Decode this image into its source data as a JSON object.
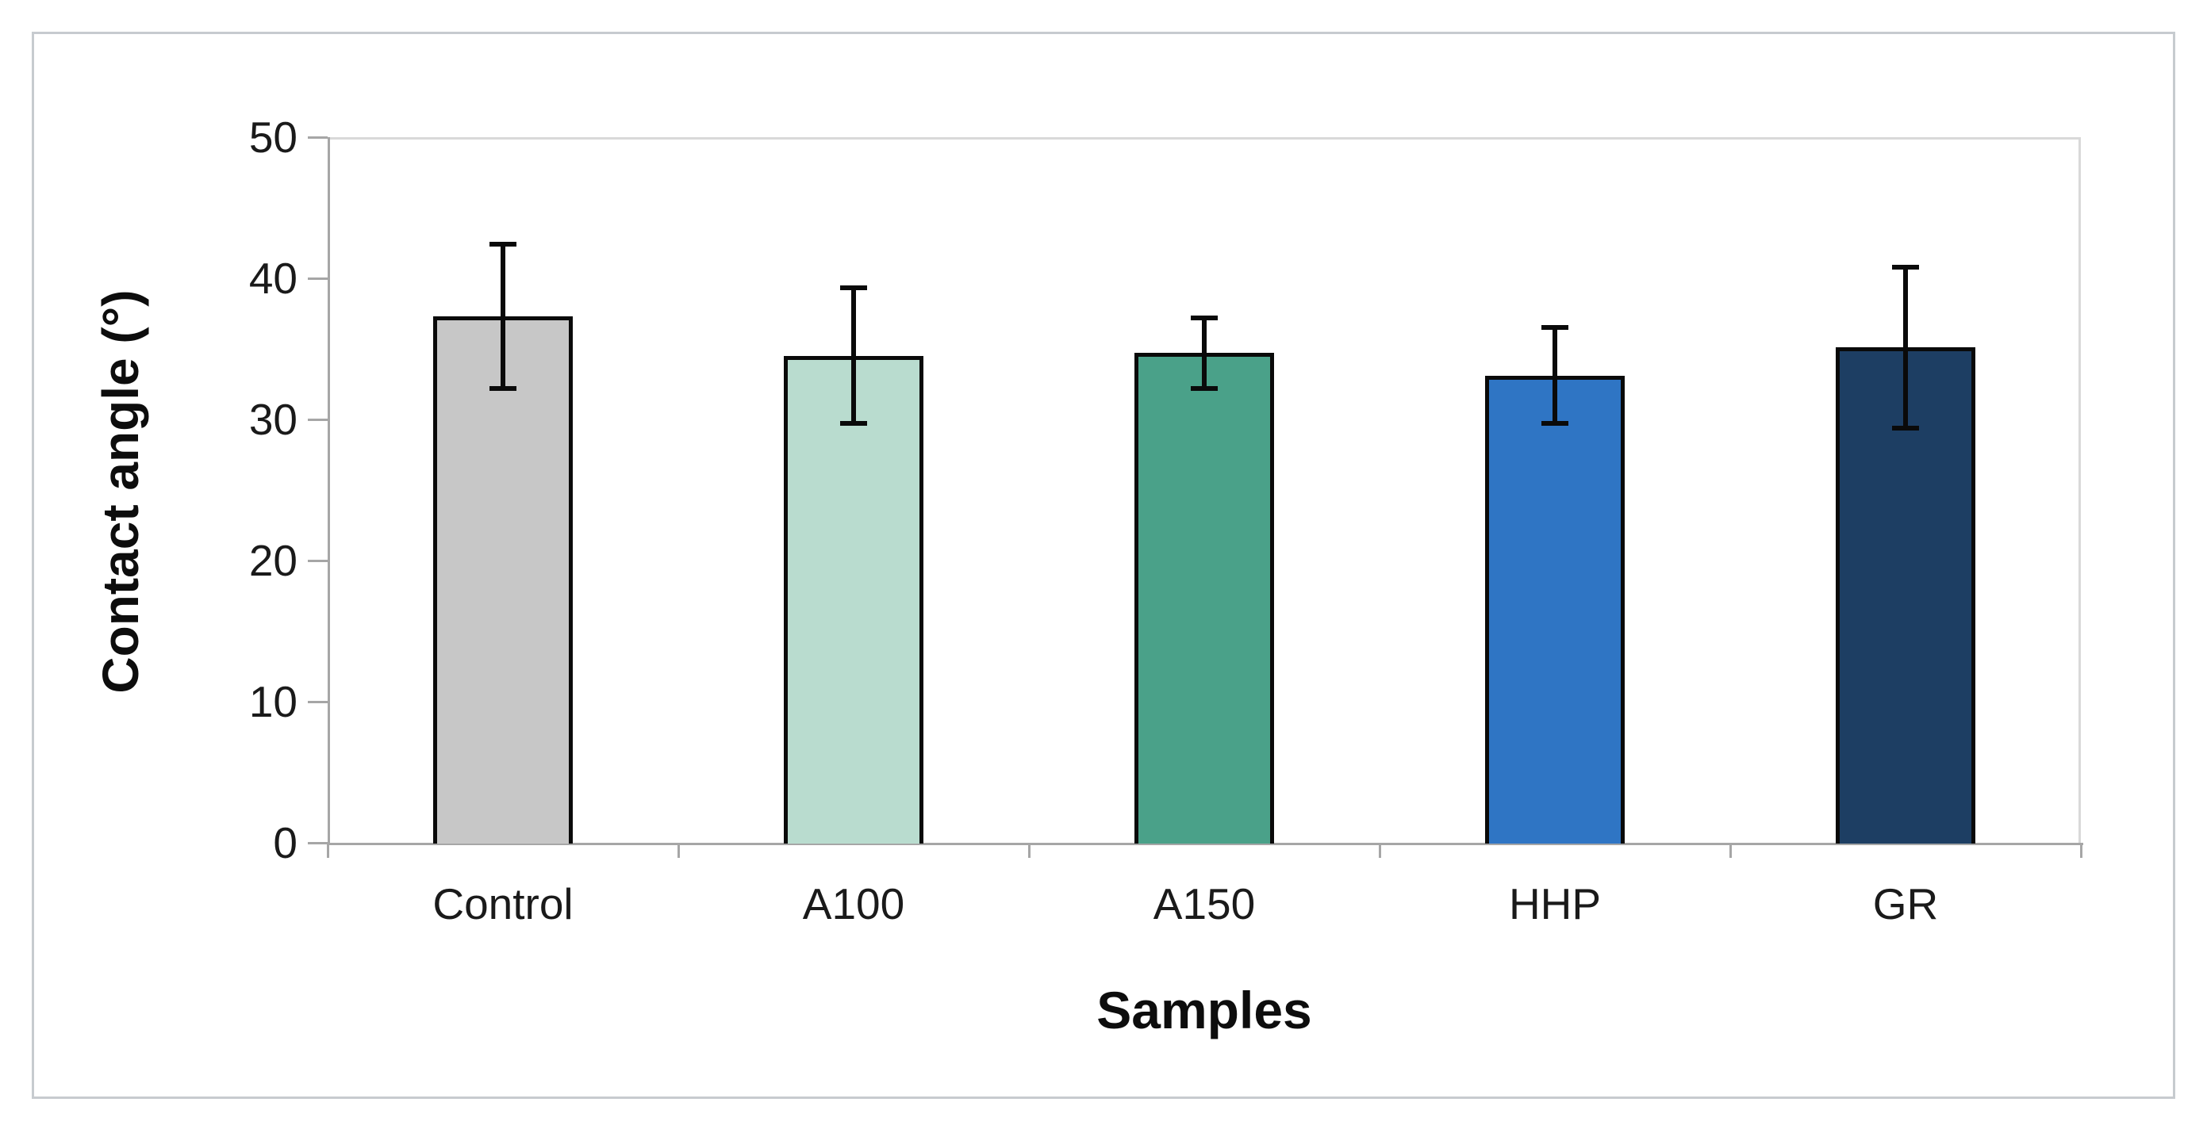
{
  "chart_data": {
    "type": "bar",
    "title": "",
    "xlabel": "Samples",
    "ylabel": "Contact angle (°)",
    "categories": [
      "Control",
      "A100",
      "A150",
      "HHP",
      "GR"
    ],
    "values": [
      37.3,
      34.5,
      34.7,
      33.1,
      35.1
    ],
    "errors": [
      5.1,
      4.8,
      2.5,
      3.4,
      5.7
    ],
    "bar_colors": [
      "#c7c7c7",
      "#b9dccf",
      "#4aa189",
      "#2f75c4",
      "#1d3e63"
    ],
    "bar_border_color": "#0a0a0a",
    "error_bar_color": "#0a0a0a",
    "ylim": [
      0,
      50
    ],
    "yticks": [
      0,
      10,
      20,
      30,
      40,
      50
    ],
    "grid": false,
    "legend": false,
    "axis_color": "#a6a6a6",
    "plot_border_color": "#d9d9d9"
  }
}
